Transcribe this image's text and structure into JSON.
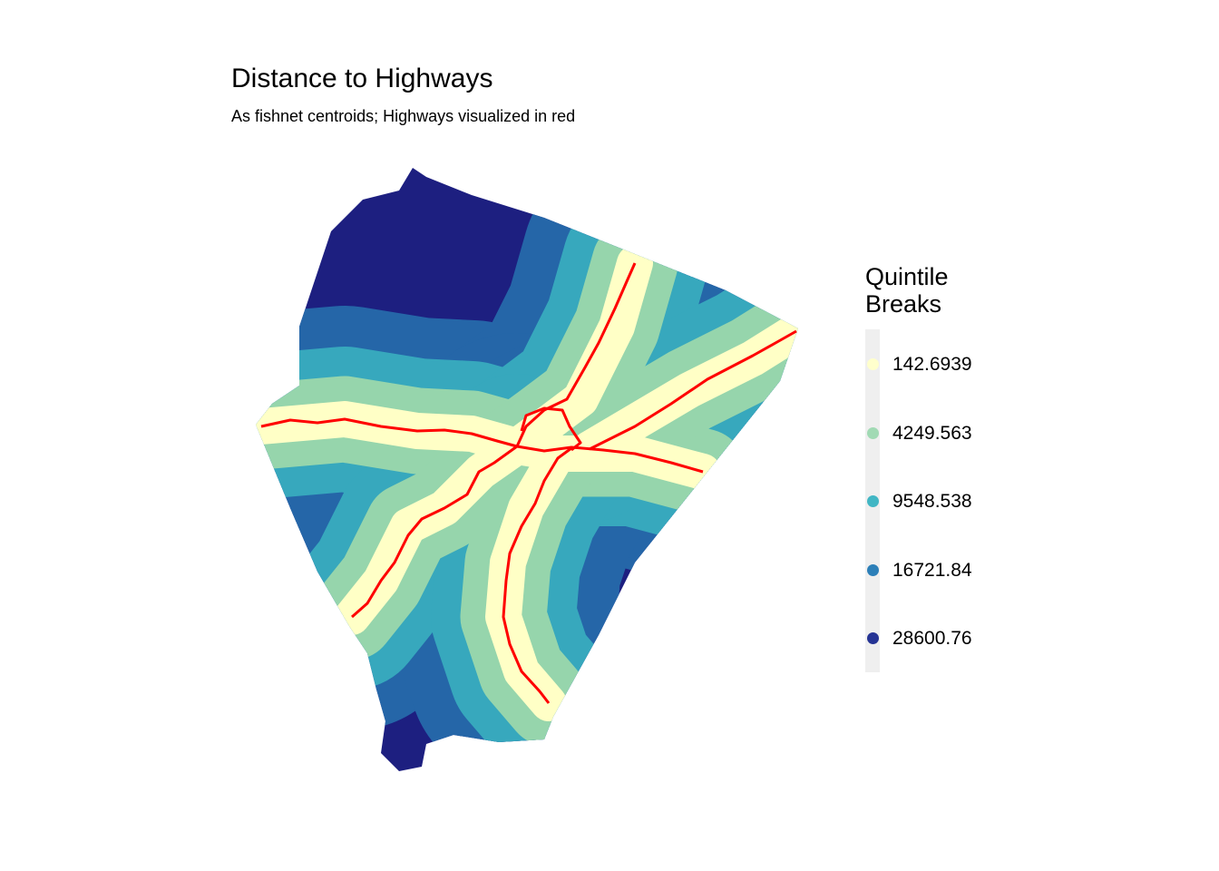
{
  "title": "Distance to Highways",
  "subtitle": "As fishnet centroids; Highways visualized in red",
  "legend": {
    "title_line1": "Quintile",
    "title_line2": "Breaks",
    "items": [
      {
        "label": "142.6939",
        "color": "#ffffcc"
      },
      {
        "label": "4249.563",
        "color": "#a1dab4"
      },
      {
        "label": "9548.538",
        "color": "#41b6c4"
      },
      {
        "label": "16721.84",
        "color": "#2c7fb8"
      },
      {
        "label": "28600.76",
        "color": "#253494"
      }
    ]
  },
  "highway_color": "#ff0000"
}
